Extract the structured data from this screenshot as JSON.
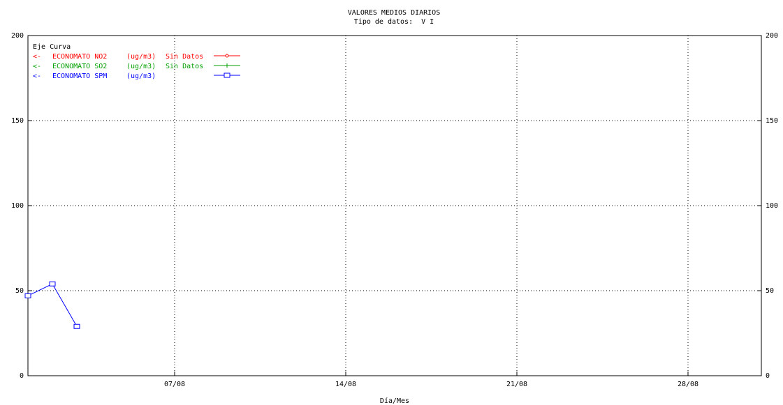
{
  "chart_data": {
    "type": "line",
    "title": "VALORES MEDIOS DIARIOS",
    "subtitle": "Tipo de datos:  V I",
    "xlabel": "Día/Mes",
    "ylabel": "",
    "y_ticks": [
      0,
      50,
      100,
      150,
      200
    ],
    "y2_ticks": [
      0,
      50,
      100,
      150,
      200
    ],
    "ylim": [
      0,
      200
    ],
    "xlim": [
      1,
      31
    ],
    "x_ticks": [
      {
        "day": 7,
        "label": "07/08"
      },
      {
        "day": 14,
        "label": "14/08"
      },
      {
        "day": 21,
        "label": "21/08"
      },
      {
        "day": 28,
        "label": "28/08"
      }
    ],
    "grid": true,
    "legend_header": "Eje Curva",
    "legend_position": "top-left",
    "series": [
      {
        "name": "ECONOMATO NO2",
        "axis": "<-",
        "unit": "(ug/m3)",
        "note": "Sin Datos",
        "color": "#ff0000",
        "marker": "circle",
        "points": []
      },
      {
        "name": "ECONOMATO SO2",
        "axis": "<-",
        "unit": "(ug/m3)",
        "note": "Sin Datos",
        "color": "#00a000",
        "marker": "cross",
        "points": []
      },
      {
        "name": "ECONOMATO SPM",
        "axis": "<-",
        "unit": "(ug/m3)",
        "note": "",
        "color": "#0000ff",
        "marker": "square",
        "points": [
          {
            "x": 1,
            "y": 47
          },
          {
            "x": 2,
            "y": 54
          },
          {
            "x": 3,
            "y": 29
          }
        ]
      }
    ]
  }
}
